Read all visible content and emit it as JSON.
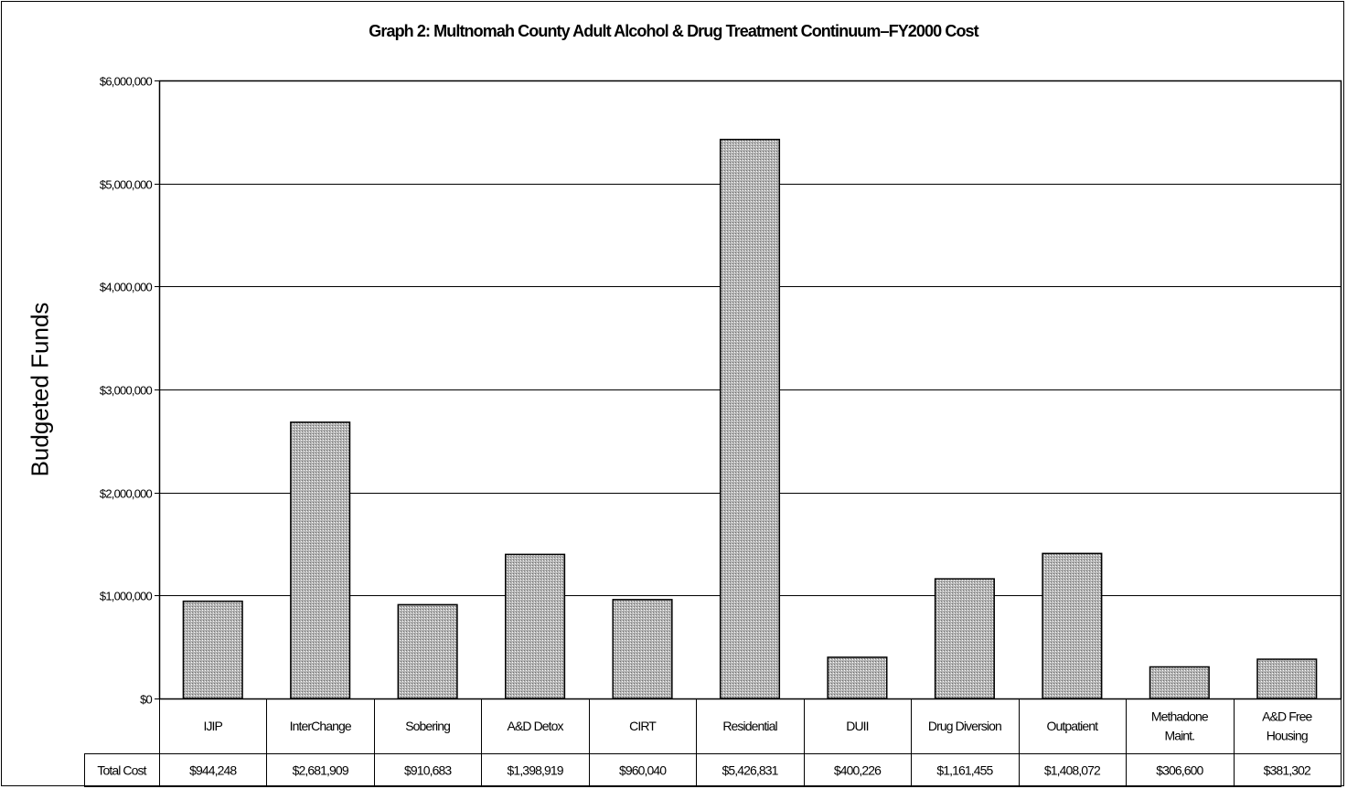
{
  "chart_data": {
    "type": "bar",
    "title": "Graph 2: Multnomah County Adult Alcohol & Drug Treatment Continuum–FY2000 Cost",
    "ylabel": "Budgeted Funds",
    "xlabel": "",
    "ylim": [
      0,
      6000000
    ],
    "yticks": [
      0,
      1000000,
      2000000,
      3000000,
      4000000,
      5000000,
      6000000
    ],
    "ytick_labels": [
      "$0",
      "$1,000,000",
      "$2,000,000",
      "$3,000,000",
      "$4,000,000",
      "$5,000,000",
      "$6,000,000"
    ],
    "grid": true,
    "categories": [
      [
        "IJIP"
      ],
      [
        "InterChange"
      ],
      [
        "Sobering"
      ],
      [
        "A&D Detox"
      ],
      [
        "CIRT"
      ],
      [
        "Residential"
      ],
      [
        "DUII"
      ],
      [
        "Drug Diversion"
      ],
      [
        "Outpatient"
      ],
      [
        "Methadone",
        "Maint."
      ],
      [
        "A&D Free",
        "Housing"
      ]
    ],
    "series": [
      {
        "name": "Total Cost",
        "values": [
          944248,
          2681909,
          910683,
          1398919,
          960040,
          5426831,
          400226,
          1161455,
          1408072,
          306600,
          381302
        ],
        "labels": [
          "$944,248",
          "$2,681,909",
          "$910,683",
          "$1,398,919",
          "$960,040",
          "$5,426,831",
          "$400,226",
          "$1,161,455",
          "$1,408,072",
          "$306,600",
          "$381,302"
        ]
      }
    ],
    "data_table": true,
    "bar_color": "#a8a8a8"
  }
}
